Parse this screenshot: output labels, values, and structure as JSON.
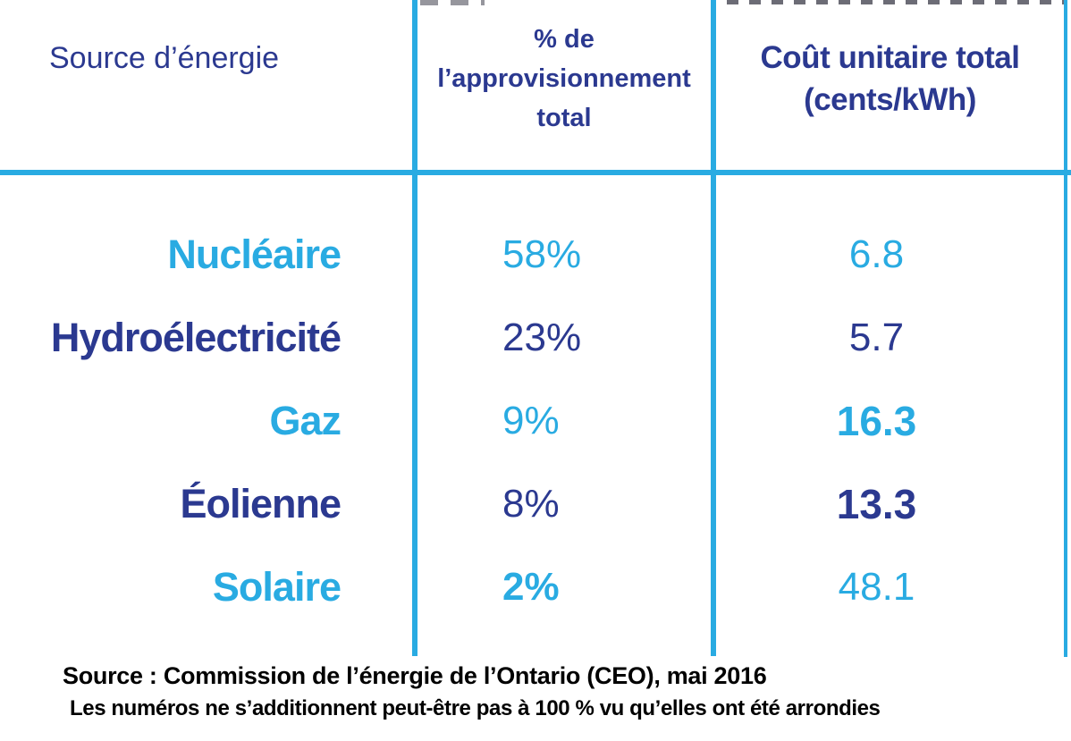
{
  "colors": {
    "cyan": "#29ABE2",
    "navy": "#2B3990",
    "ink": "#000000",
    "grid": "#29ABE2"
  },
  "table": {
    "headers": [
      {
        "label": "Source d’énergie"
      },
      {
        "lines": [
          "% de",
          "l’approvisionnement",
          "total"
        ]
      },
      {
        "lines": [
          "Coût unitaire total",
          "(cents/kWh)"
        ]
      }
    ],
    "rows": [
      {
        "source": "Nucléaire",
        "share": "58%",
        "cost": "6.8"
      },
      {
        "source": "Hydroélectricité",
        "share": "23%",
        "cost": "5.7"
      },
      {
        "source": "Gaz",
        "share": "9%",
        "cost": "16.3"
      },
      {
        "source": "Éolienne",
        "share": "8%",
        "cost": "13.3"
      },
      {
        "source": "Solaire",
        "share": "2%",
        "cost": "48.1"
      }
    ]
  },
  "footer": {
    "source_line": "Source : Commission de l’énergie de l’Ontario (CEO), mai 2016",
    "note_line": "Les numéros ne s’additionnent peut-être pas à 100 % vu qu’elles ont été arrondies"
  },
  "chart_data": {
    "type": "table",
    "title": "",
    "columns": [
      "Source d’énergie",
      "% de l’approvisionnement total",
      "Coût unitaire total (cents/kWh)"
    ],
    "categories": [
      "Nucléaire",
      "Hydroélectricité",
      "Gaz",
      "Éolienne",
      "Solaire"
    ],
    "series": [
      {
        "name": "% de l’approvisionnement total",
        "unit": "%",
        "values": [
          58,
          23,
          9,
          8,
          2
        ]
      },
      {
        "name": "Coût unitaire total",
        "unit": "cents/kWh",
        "values": [
          6.8,
          5.7,
          16.3,
          13.3,
          48.1
        ]
      }
    ],
    "rows": [
      [
        "Nucléaire",
        "58%",
        "6.8"
      ],
      [
        "Hydroélectricité",
        "23%",
        "5.7"
      ],
      [
        "Gaz",
        "9%",
        "16.3"
      ],
      [
        "Éolienne",
        "8%",
        "13.3"
      ],
      [
        "Solaire",
        "2%",
        "48.1"
      ]
    ],
    "source_note": "Source : Commission de l’énergie de l’Ontario (CEO), mai 2016",
    "rounding_note": "Les numéros ne s’additionnent peut-être pas à 100 % vu qu’elles ont été arrondies"
  }
}
